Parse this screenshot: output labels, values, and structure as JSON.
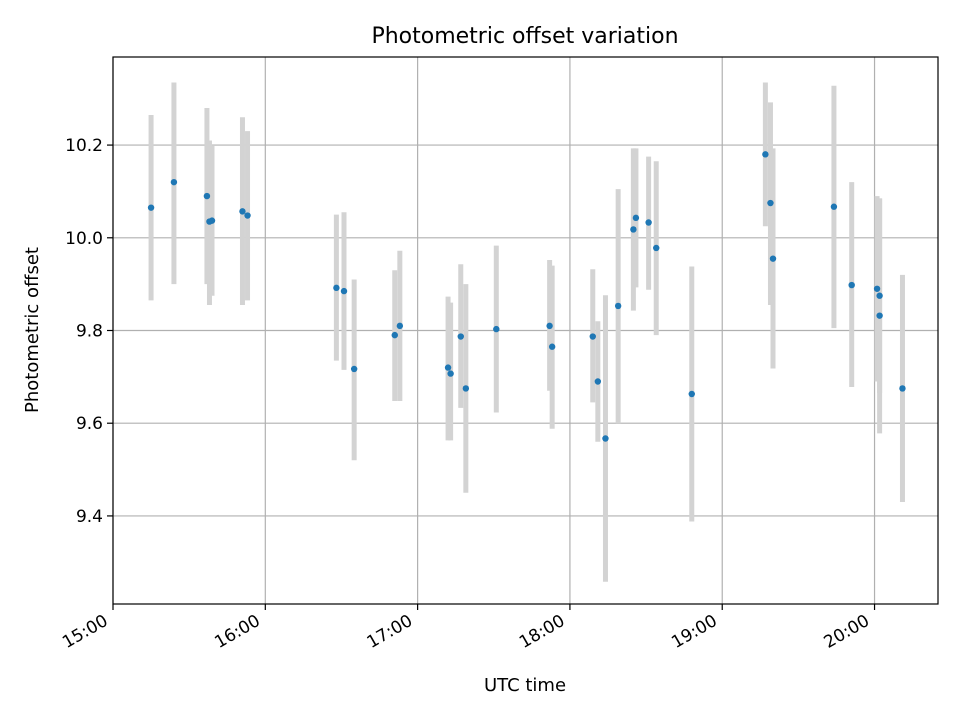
{
  "chart_data": {
    "type": "scatter",
    "title": "Photometric offset variation",
    "xlabel": "UTC time",
    "ylabel": "Photometric offset",
    "x_unit": "hours UTC",
    "xlim": [
      "15:00",
      "20:25"
    ],
    "ylim": [
      9.21,
      10.39
    ],
    "x_ticks": [
      "15:00",
      "16:00",
      "17:00",
      "18:00",
      "19:00",
      "20:00"
    ],
    "y_ticks": [
      "9.4",
      "9.6",
      "9.8",
      "10.0",
      "10.2"
    ],
    "grid": true,
    "point_color": "#1f77b4",
    "errorbar_color": "#d3d3d3",
    "series": [
      {
        "points": [
          {
            "x": "15:15",
            "y": 10.065,
            "lo": 9.865,
            "hi": 10.265
          },
          {
            "x": "15:24",
            "y": 10.12,
            "lo": 9.9,
            "hi": 10.335
          },
          {
            "x": "15:37",
            "y": 10.09,
            "lo": 9.9,
            "hi": 10.28
          },
          {
            "x": "15:38",
            "y": 10.035,
            "lo": 9.855,
            "hi": 10.21
          },
          {
            "x": "15:39",
            "y": 10.037,
            "lo": 9.875,
            "hi": 10.2
          },
          {
            "x": "15:51",
            "y": 10.057,
            "lo": 9.855,
            "hi": 10.26
          },
          {
            "x": "15:53",
            "y": 10.048,
            "lo": 9.865,
            "hi": 10.23
          },
          {
            "x": "16:28",
            "y": 9.892,
            "lo": 9.735,
            "hi": 10.05
          },
          {
            "x": "16:31",
            "y": 9.885,
            "lo": 9.715,
            "hi": 10.055
          },
          {
            "x": "16:35",
            "y": 9.717,
            "lo": 9.52,
            "hi": 9.91
          },
          {
            "x": "16:51",
            "y": 9.79,
            "lo": 9.648,
            "hi": 9.93
          },
          {
            "x": "16:53",
            "y": 9.81,
            "lo": 9.648,
            "hi": 9.972
          },
          {
            "x": "17:12",
            "y": 9.72,
            "lo": 9.563,
            "hi": 9.873
          },
          {
            "x": "17:13",
            "y": 9.707,
            "lo": 9.563,
            "hi": 9.86
          },
          {
            "x": "17:17",
            "y": 9.787,
            "lo": 9.633,
            "hi": 9.943
          },
          {
            "x": "17:19",
            "y": 9.675,
            "lo": 9.45,
            "hi": 9.9
          },
          {
            "x": "17:31",
            "y": 9.803,
            "lo": 9.623,
            "hi": 9.983
          },
          {
            "x": "17:52",
            "y": 9.81,
            "lo": 9.67,
            "hi": 9.952
          },
          {
            "x": "17:53",
            "y": 9.765,
            "lo": 9.588,
            "hi": 9.94
          },
          {
            "x": "18:09",
            "y": 9.787,
            "lo": 9.645,
            "hi": 9.932
          },
          {
            "x": "18:11",
            "y": 9.69,
            "lo": 9.56,
            "hi": 9.82
          },
          {
            "x": "18:14",
            "y": 9.567,
            "lo": 9.258,
            "hi": 9.876
          },
          {
            "x": "18:19",
            "y": 9.853,
            "lo": 9.6,
            "hi": 10.105
          },
          {
            "x": "18:25",
            "y": 10.018,
            "lo": 9.843,
            "hi": 10.193
          },
          {
            "x": "18:26",
            "y": 10.043,
            "lo": 9.893,
            "hi": 10.193
          },
          {
            "x": "18:31",
            "y": 10.033,
            "lo": 9.888,
            "hi": 10.175
          },
          {
            "x": "18:34",
            "y": 9.978,
            "lo": 9.79,
            "hi": 10.165
          },
          {
            "x": "18:48",
            "y": 9.663,
            "lo": 9.388,
            "hi": 9.938
          },
          {
            "x": "19:17",
            "y": 10.18,
            "lo": 10.025,
            "hi": 10.335
          },
          {
            "x": "19:19",
            "y": 10.075,
            "lo": 9.855,
            "hi": 10.292
          },
          {
            "x": "19:20",
            "y": 9.955,
            "lo": 9.718,
            "hi": 10.193
          },
          {
            "x": "19:44",
            "y": 10.067,
            "lo": 9.805,
            "hi": 10.328
          },
          {
            "x": "19:51",
            "y": 9.898,
            "lo": 9.678,
            "hi": 10.12
          },
          {
            "x": "20:01",
            "y": 9.89,
            "lo": 9.69,
            "hi": 10.09
          },
          {
            "x": "20:02",
            "y": 9.875,
            "lo": 9.665,
            "hi": 10.085
          },
          {
            "x": "20:02",
            "y": 9.832,
            "lo": 9.578,
            "hi": 10.085
          },
          {
            "x": "20:11",
            "y": 9.675,
            "lo": 9.43,
            "hi": 9.92
          }
        ]
      }
    ]
  }
}
